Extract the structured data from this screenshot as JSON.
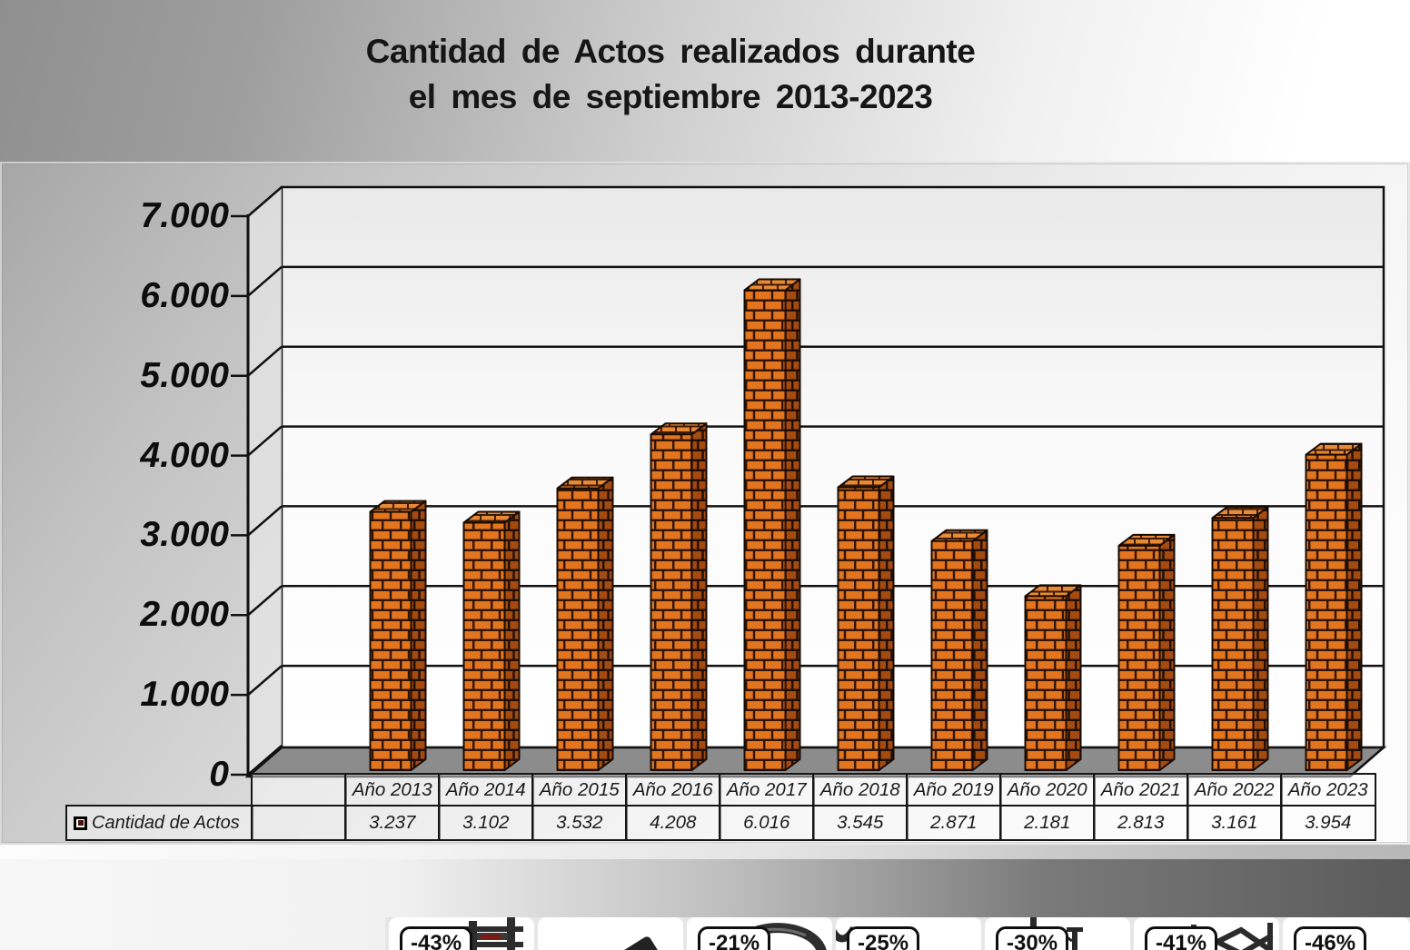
{
  "title": {
    "line1": "Cantidad de Actos realizados durante",
    "line2": "el mes de septiembre 2013-2023"
  },
  "chart_data": {
    "type": "bar",
    "style": "3d-brick-columns",
    "title": "Cantidad de Actos realizados durante el mes de septiembre 2013-2023",
    "categories": [
      "Año 2013",
      "Año 2014",
      "Año 2015",
      "Año 2016",
      "Año 2017",
      "Año 2018",
      "Año 2019",
      "Año 2020",
      "Año 2021",
      "Año 2022",
      "Año 2023"
    ],
    "series": [
      {
        "name": "Cantidad de Actos",
        "values": [
          3237,
          3102,
          3532,
          4208,
          6016,
          3545,
          2871,
          2181,
          2813,
          3161,
          3954
        ]
      }
    ],
    "value_labels": [
      "3.237",
      "3.102",
      "3.532",
      "4.208",
      "6.016",
      "3.545",
      "2.871",
      "2.181",
      "2.813",
      "3.161",
      "3.954"
    ],
    "xlabel": "",
    "ylabel": "",
    "ylim": [
      0,
      7000
    ],
    "ytick_labels": [
      "7.000",
      "6.000",
      "5.000",
      "4.000",
      "3.000",
      "2.000",
      "1.000",
      "0"
    ],
    "grid": true,
    "legend_position": "bottom-data-table"
  },
  "promo_strip": {
    "cards": [
      {
        "discount": "-43%",
        "icon": "rack"
      },
      {
        "discount": "",
        "icon": "machine"
      },
      {
        "discount": "-21%",
        "icon": "bar"
      },
      {
        "discount": "-25%",
        "icon": "hook"
      },
      {
        "discount": "-30%",
        "icon": "pole"
      },
      {
        "discount": "-41%",
        "icon": "frame"
      },
      {
        "discount": "-46%",
        "icon": "none"
      }
    ]
  },
  "colors": {
    "brick_front": "#e4751f",
    "mortar_front": "#2f1404",
    "brick_side": "#a54b10",
    "mortar_side": "#200e04",
    "brick_top": "#e88a33",
    "mortar_top": "#3a1b0a",
    "bar_outline": "#170b03",
    "grid_line": "#111111",
    "floor": "#8c8c8c",
    "legend_key": "#4a120b",
    "title_text": "#161616"
  }
}
